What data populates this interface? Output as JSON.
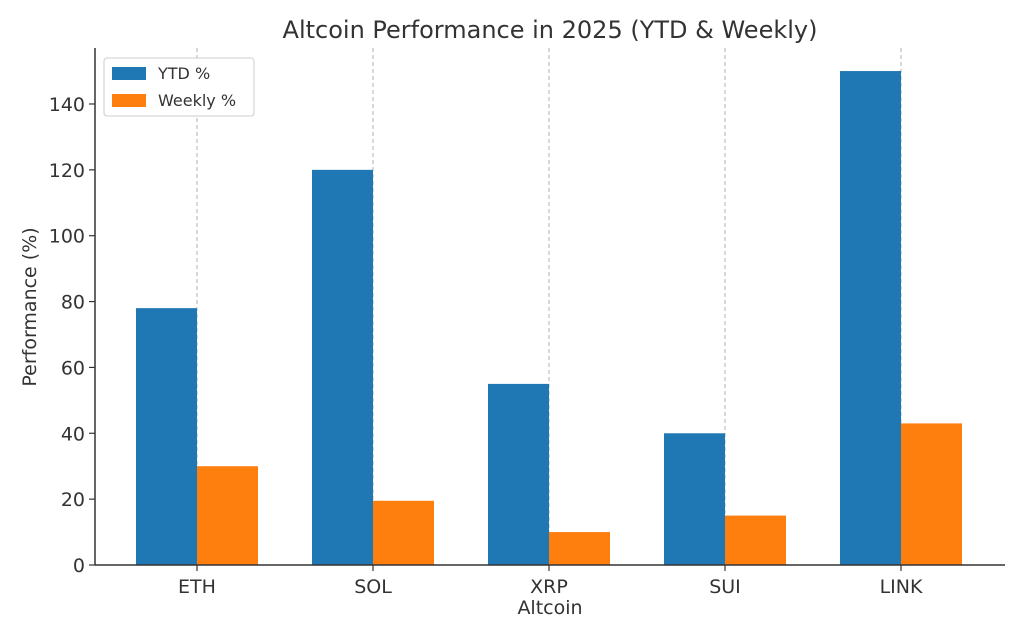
{
  "chart_data": {
    "type": "bar",
    "title": "Altcoin Performance in 2025 (YTD & Weekly)",
    "xlabel": "Altcoin",
    "ylabel": "Performance (%)",
    "categories": [
      "ETH",
      "SOL",
      "XRP",
      "SUI",
      "LINK"
    ],
    "series": [
      {
        "name": "YTD %",
        "values": [
          78,
          120,
          55,
          40,
          150
        ],
        "color": "#1f77b4"
      },
      {
        "name": "Weekly %",
        "values": [
          30,
          19.5,
          10,
          15,
          43
        ],
        "color": "#ff7f0e"
      }
    ],
    "ylim": [
      0,
      157
    ],
    "yticks": [
      "0",
      "20",
      "40",
      "60",
      "80",
      "100",
      "120",
      "140"
    ],
    "grid": "vertical-dashed",
    "legend_position": "top-left"
  }
}
